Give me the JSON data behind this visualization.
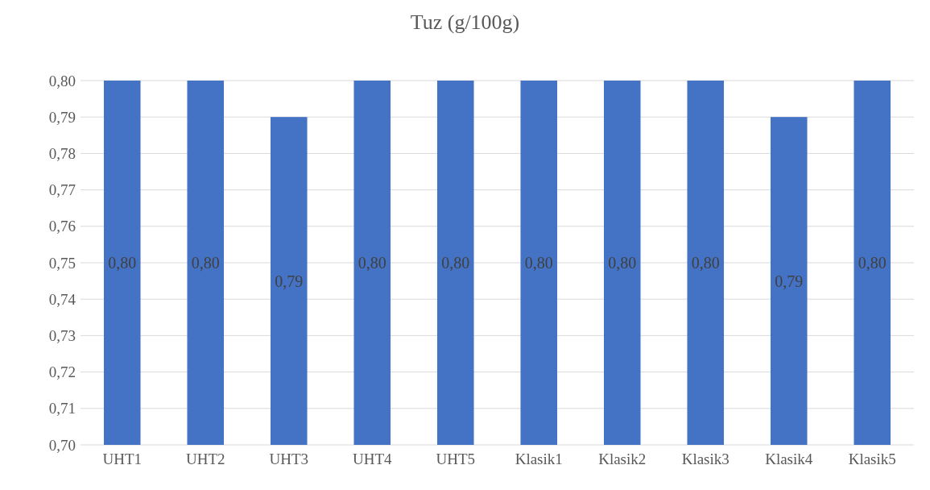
{
  "chart_data": {
    "type": "bar",
    "title": "Tuz (g/100g)",
    "categories": [
      "UHT1",
      "UHT2",
      "UHT3",
      "UHT4",
      "UHT5",
      "Klasik1",
      "Klasik2",
      "Klasik3",
      "Klasik4",
      "Klasik5"
    ],
    "values": [
      0.8,
      0.8,
      0.79,
      0.8,
      0.8,
      0.8,
      0.8,
      0.8,
      0.79,
      0.8
    ],
    "value_labels": [
      "0,80",
      "0,80",
      "0,79",
      "0,80",
      "0,80",
      "0,80",
      "0,80",
      "0,80",
      "0,79",
      "0,80"
    ],
    "color": "#4472c4",
    "ylim": [
      0.7,
      0.8
    ],
    "yticks": [
      {
        "value": 0.7,
        "label": "0,70"
      },
      {
        "value": 0.71,
        "label": "0,71"
      },
      {
        "value": 0.72,
        "label": "0,72"
      },
      {
        "value": 0.73,
        "label": "0,73"
      },
      {
        "value": 0.74,
        "label": "0,74"
      },
      {
        "value": 0.75,
        "label": "0,75"
      },
      {
        "value": 0.76,
        "label": "0,76"
      },
      {
        "value": 0.77,
        "label": "0,77"
      },
      {
        "value": 0.78,
        "label": "0,78"
      },
      {
        "value": 0.79,
        "label": "0,79"
      },
      {
        "value": 0.8,
        "label": "0,80"
      }
    ],
    "grid": "y"
  }
}
